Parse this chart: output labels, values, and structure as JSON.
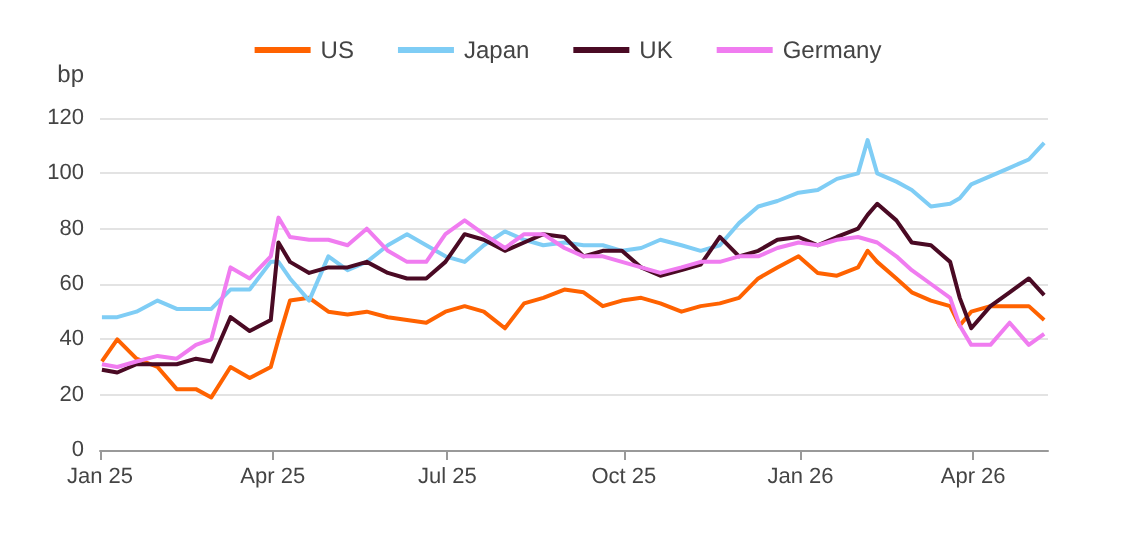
{
  "chart_data": {
    "type": "line",
    "ylabel": "bp",
    "legend": "top",
    "grid": "y",
    "marker": "none",
    "line_style": "solid",
    "x": [
      "2025-01-02",
      "2025-01-10",
      "2025-01-20",
      "2025-01-31",
      "2025-02-10",
      "2025-02-20",
      "2025-02-28",
      "2025-03-10",
      "2025-03-20",
      "2025-03-31",
      "2025-04-04",
      "2025-04-10",
      "2025-04-20",
      "2025-04-30",
      "2025-05-10",
      "2025-05-20",
      "2025-05-31",
      "2025-06-10",
      "2025-06-20",
      "2025-06-30",
      "2025-07-10",
      "2025-07-20",
      "2025-07-31",
      "2025-08-10",
      "2025-08-20",
      "2025-08-31",
      "2025-09-10",
      "2025-09-20",
      "2025-09-30",
      "2025-10-10",
      "2025-10-20",
      "2025-10-31",
      "2025-11-10",
      "2025-11-20",
      "2025-11-30",
      "2025-12-10",
      "2025-12-20",
      "2025-12-31",
      "2026-01-10",
      "2026-01-20",
      "2026-01-31",
      "2026-02-05",
      "2026-02-10",
      "2026-02-20",
      "2026-02-28",
      "2026-03-10",
      "2026-03-20",
      "2026-03-25",
      "2026-03-31",
      "2026-04-10",
      "2026-04-20",
      "2026-04-30",
      "2026-05-08"
    ],
    "xlim": [
      "2025-01-01",
      "2026-05-10"
    ],
    "xticks": [
      {
        "value": "2025-01-01",
        "label": "Jan 25"
      },
      {
        "value": "2025-04-01",
        "label": "Apr 25"
      },
      {
        "value": "2025-07-01",
        "label": "Jul 25"
      },
      {
        "value": "2025-10-01",
        "label": "Oct 25"
      },
      {
        "value": "2026-01-01",
        "label": "Jan 26"
      },
      {
        "value": "2026-04-01",
        "label": "Apr 26"
      }
    ],
    "ylim": [
      0,
      120
    ],
    "yticks": [
      0,
      20,
      40,
      60,
      80,
      100,
      120
    ],
    "series": [
      {
        "name": "US",
        "color": "#ff6200",
        "values": [
          32,
          40,
          33,
          30,
          22,
          22,
          19,
          30,
          26,
          30,
          40,
          54,
          55,
          50,
          49,
          50,
          48,
          47,
          46,
          50,
          52,
          50,
          44,
          53,
          55,
          58,
          57,
          52,
          54,
          55,
          53,
          50,
          52,
          53,
          55,
          62,
          66,
          70,
          64,
          63,
          66,
          72,
          68,
          62,
          57,
          54,
          52,
          45,
          50,
          52,
          52,
          52,
          47
        ]
      },
      {
        "name": "Japan",
        "color": "#7fcdf5",
        "values": [
          48,
          48,
          50,
          54,
          51,
          51,
          51,
          58,
          58,
          68,
          68,
          62,
          54,
          70,
          65,
          68,
          74,
          78,
          74,
          70,
          68,
          74,
          79,
          76,
          74,
          75,
          74,
          74,
          72,
          73,
          76,
          74,
          72,
          74,
          82,
          88,
          90,
          93,
          94,
          98,
          100,
          112,
          100,
          97,
          94,
          88,
          89,
          91,
          96,
          99,
          102,
          105,
          111
        ]
      },
      {
        "name": "UK",
        "color": "#4a0a24",
        "values": [
          29,
          28,
          31,
          31,
          31,
          33,
          32,
          48,
          43,
          47,
          75,
          68,
          64,
          66,
          66,
          68,
          64,
          62,
          62,
          68,
          78,
          76,
          72,
          75,
          78,
          77,
          70,
          72,
          72,
          66,
          63,
          65,
          67,
          77,
          70,
          72,
          76,
          77,
          74,
          77,
          80,
          85,
          89,
          83,
          75,
          74,
          68,
          55,
          44,
          52,
          57,
          62,
          56
        ]
      },
      {
        "name": "Germany",
        "color": "#f07cf0",
        "values": [
          31,
          30,
          32,
          34,
          33,
          38,
          40,
          66,
          62,
          70,
          84,
          77,
          76,
          76,
          74,
          80,
          72,
          68,
          68,
          78,
          83,
          78,
          73,
          78,
          78,
          73,
          70,
          70,
          68,
          66,
          64,
          66,
          68,
          68,
          70,
          70,
          73,
          75,
          74,
          76,
          77,
          76,
          75,
          70,
          65,
          60,
          55,
          45,
          38,
          38,
          46,
          38,
          42
        ]
      }
    ]
  }
}
